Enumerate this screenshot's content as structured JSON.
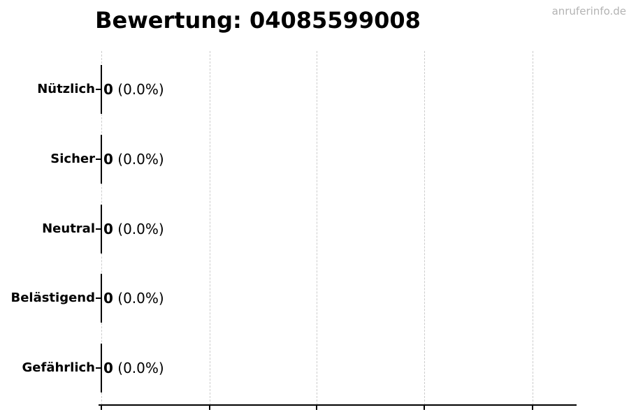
{
  "title": "Bewertung: 04085599008",
  "watermark": "anruferinfo.de",
  "colors": {
    "background": "#ffffff",
    "text": "#000000",
    "grid": "#cccccc",
    "axis": "#000000",
    "watermark": "#b3b3b3"
  },
  "chart_data": {
    "type": "bar",
    "orientation": "horizontal",
    "title": "Bewertung: 04085599008",
    "categories": [
      "Nützlich",
      "Sicher",
      "Neutral",
      "Belästigend",
      "Gefährlich"
    ],
    "values": [
      0,
      0,
      0,
      0,
      0
    ],
    "value_labels": [
      "0",
      "0",
      "0",
      "0",
      "0"
    ],
    "percent_labels": [
      "(0.0%)",
      "(0.0%)",
      "(0.0%)",
      "(0.0%)",
      "(0.0%)"
    ],
    "xlabel": "",
    "ylabel": "",
    "xlim": [
      0,
      1.1
    ],
    "x_tick_labels": [],
    "grid": "vertical-dashed",
    "legend_position": "none"
  }
}
